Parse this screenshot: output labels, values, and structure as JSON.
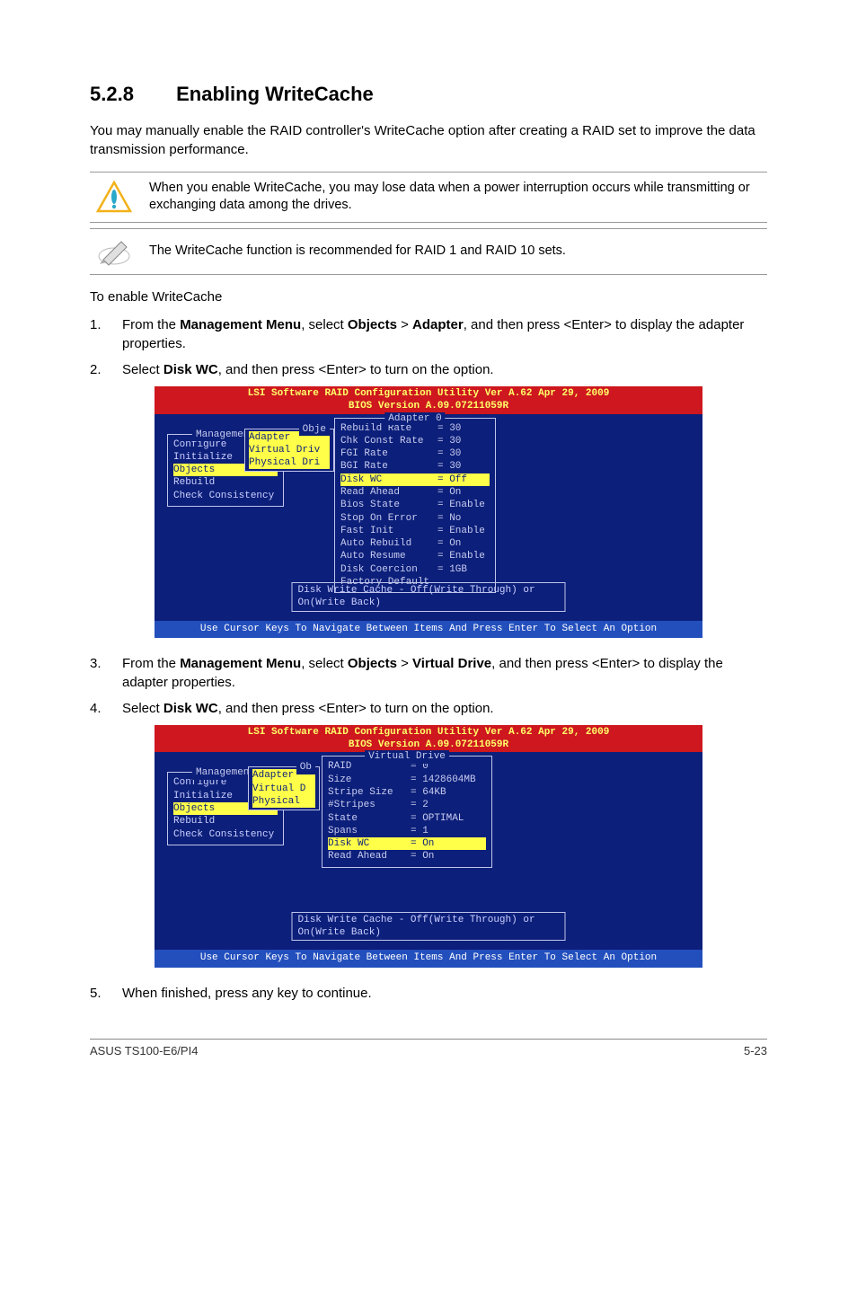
{
  "heading": {
    "number": "5.2.8",
    "title": "Enabling WriteCache"
  },
  "intro": "You may manually enable the RAID controller's WriteCache option after creating a RAID set to improve the data transmission performance.",
  "callouts": [
    {
      "icon": "caution",
      "text": "When you enable WriteCache, you may lose data when a power interruption occurs while transmitting or exchanging data among the drives."
    },
    {
      "icon": "note",
      "text": "The WriteCache function is recommended for RAID 1 and RAID 10 sets."
    }
  ],
  "subhead": "To enable WriteCache",
  "steps_a": [
    {
      "n": "1.",
      "pre": "From the ",
      "b1": "Management Menu",
      "mid": ", select ",
      "b2": "Objects",
      "sep": " > ",
      "b3": "Adapter",
      "post": ", and then press <Enter> to display the adapter properties."
    },
    {
      "n": "2.",
      "pre": "Select ",
      "b1": "Disk WC",
      "post": ", and then press <Enter> to turn on the option."
    }
  ],
  "steps_b": [
    {
      "n": "3.",
      "pre": "From the ",
      "b1": "Management Menu",
      "mid": ", select ",
      "b2": "Objects",
      "sep": " > ",
      "b3": "Virtual Drive",
      "post": ", and then press <Enter> to display the adapter properties."
    },
    {
      "n": "4.",
      "pre": "Select ",
      "b1": "Disk WC",
      "post": ", and then press <Enter> to turn on the option."
    }
  ],
  "step5": {
    "n": "5.",
    "text": "When finished, press any key to continue."
  },
  "bios1": {
    "title_line1": "LSI Software RAID Configuration Utility Ver A.62 Apr 29, 2009",
    "title_line2": "BIOS Version  A.09.07211059R",
    "mgmt_title": "Management",
    "mgmt_items": [
      "Configure",
      "Initialize",
      "Objects",
      "Rebuild",
      "Check Consistency"
    ],
    "obj_title": "Obje",
    "obj_items": [
      "Adapter",
      "Virtual Driv",
      "Physical Dri"
    ],
    "panel_title": "Adapter 0",
    "rows": [
      {
        "k": "Rebuild Rate",
        "v": "= 30"
      },
      {
        "k": "Chk Const Rate",
        "v": "= 30"
      },
      {
        "k": "FGI Rate",
        "v": "= 30"
      },
      {
        "k": "BGI Rate",
        "v": "= 30"
      },
      {
        "k": "Disk WC",
        "v": "= Off",
        "sel": true
      },
      {
        "k": "Read Ahead",
        "v": "= On"
      },
      {
        "k": "Bios State",
        "v": "= Enable"
      },
      {
        "k": "Stop On Error",
        "v": "= No"
      },
      {
        "k": "Fast Init",
        "v": "= Enable"
      },
      {
        "k": "Auto Rebuild",
        "v": "= On"
      },
      {
        "k": "Auto Resume",
        "v": "= Enable"
      },
      {
        "k": "Disk Coercion",
        "v": "= 1GB"
      },
      {
        "k": "Factory Default",
        "v": ""
      }
    ],
    "help": "Disk Write Cache - Off(Write Through) or On(Write Back)",
    "footer": "Use Cursor Keys To Navigate Between Items And Press Enter To Select An Option",
    "colors": {
      "header_bg": "#ce171e",
      "header_fg": "#ffff6a",
      "body_bg": "#0c1f7a",
      "text": "#c8ccf0",
      "highlight_bg": "#ffff4a",
      "highlight_fg": "#0c1f7a",
      "footer_bg": "#234fbd"
    }
  },
  "bios2": {
    "title_line1": "LSI Software RAID Configuration Utility Ver A.62 Apr 29, 2009",
    "title_line2": "BIOS Version  A.09.07211059R",
    "mgmt_title": "Management",
    "mgmt_items": [
      "Configure",
      "Initialize",
      "Objects",
      "Rebuild",
      "Check Consistency"
    ],
    "obj_title": "Ob",
    "obj_items": [
      "Adapter",
      "Virtual D",
      "Physical"
    ],
    "panel_title": "Virtual Drive",
    "rows": [
      {
        "k": "RAID",
        "v": "= 0"
      },
      {
        "k": "Size",
        "v": "= 1428604MB"
      },
      {
        "k": "Stripe Size",
        "v": "= 64KB"
      },
      {
        "k": "#Stripes",
        "v": "= 2"
      },
      {
        "k": "State",
        "v": "= OPTIMAL"
      },
      {
        "k": "Spans",
        "v": "= 1"
      },
      {
        "k": "Disk WC",
        "v": "= On",
        "sel": true
      },
      {
        "k": "Read Ahead",
        "v": "= On"
      }
    ],
    "help": "Disk Write Cache - Off(Write Through) or On(Write Back)",
    "footer": "Use Cursor Keys To Navigate Between Items And Press Enter To Select An Option"
  },
  "page_footer": {
    "left": "ASUS TS100-E6/PI4",
    "right": "5-23"
  }
}
